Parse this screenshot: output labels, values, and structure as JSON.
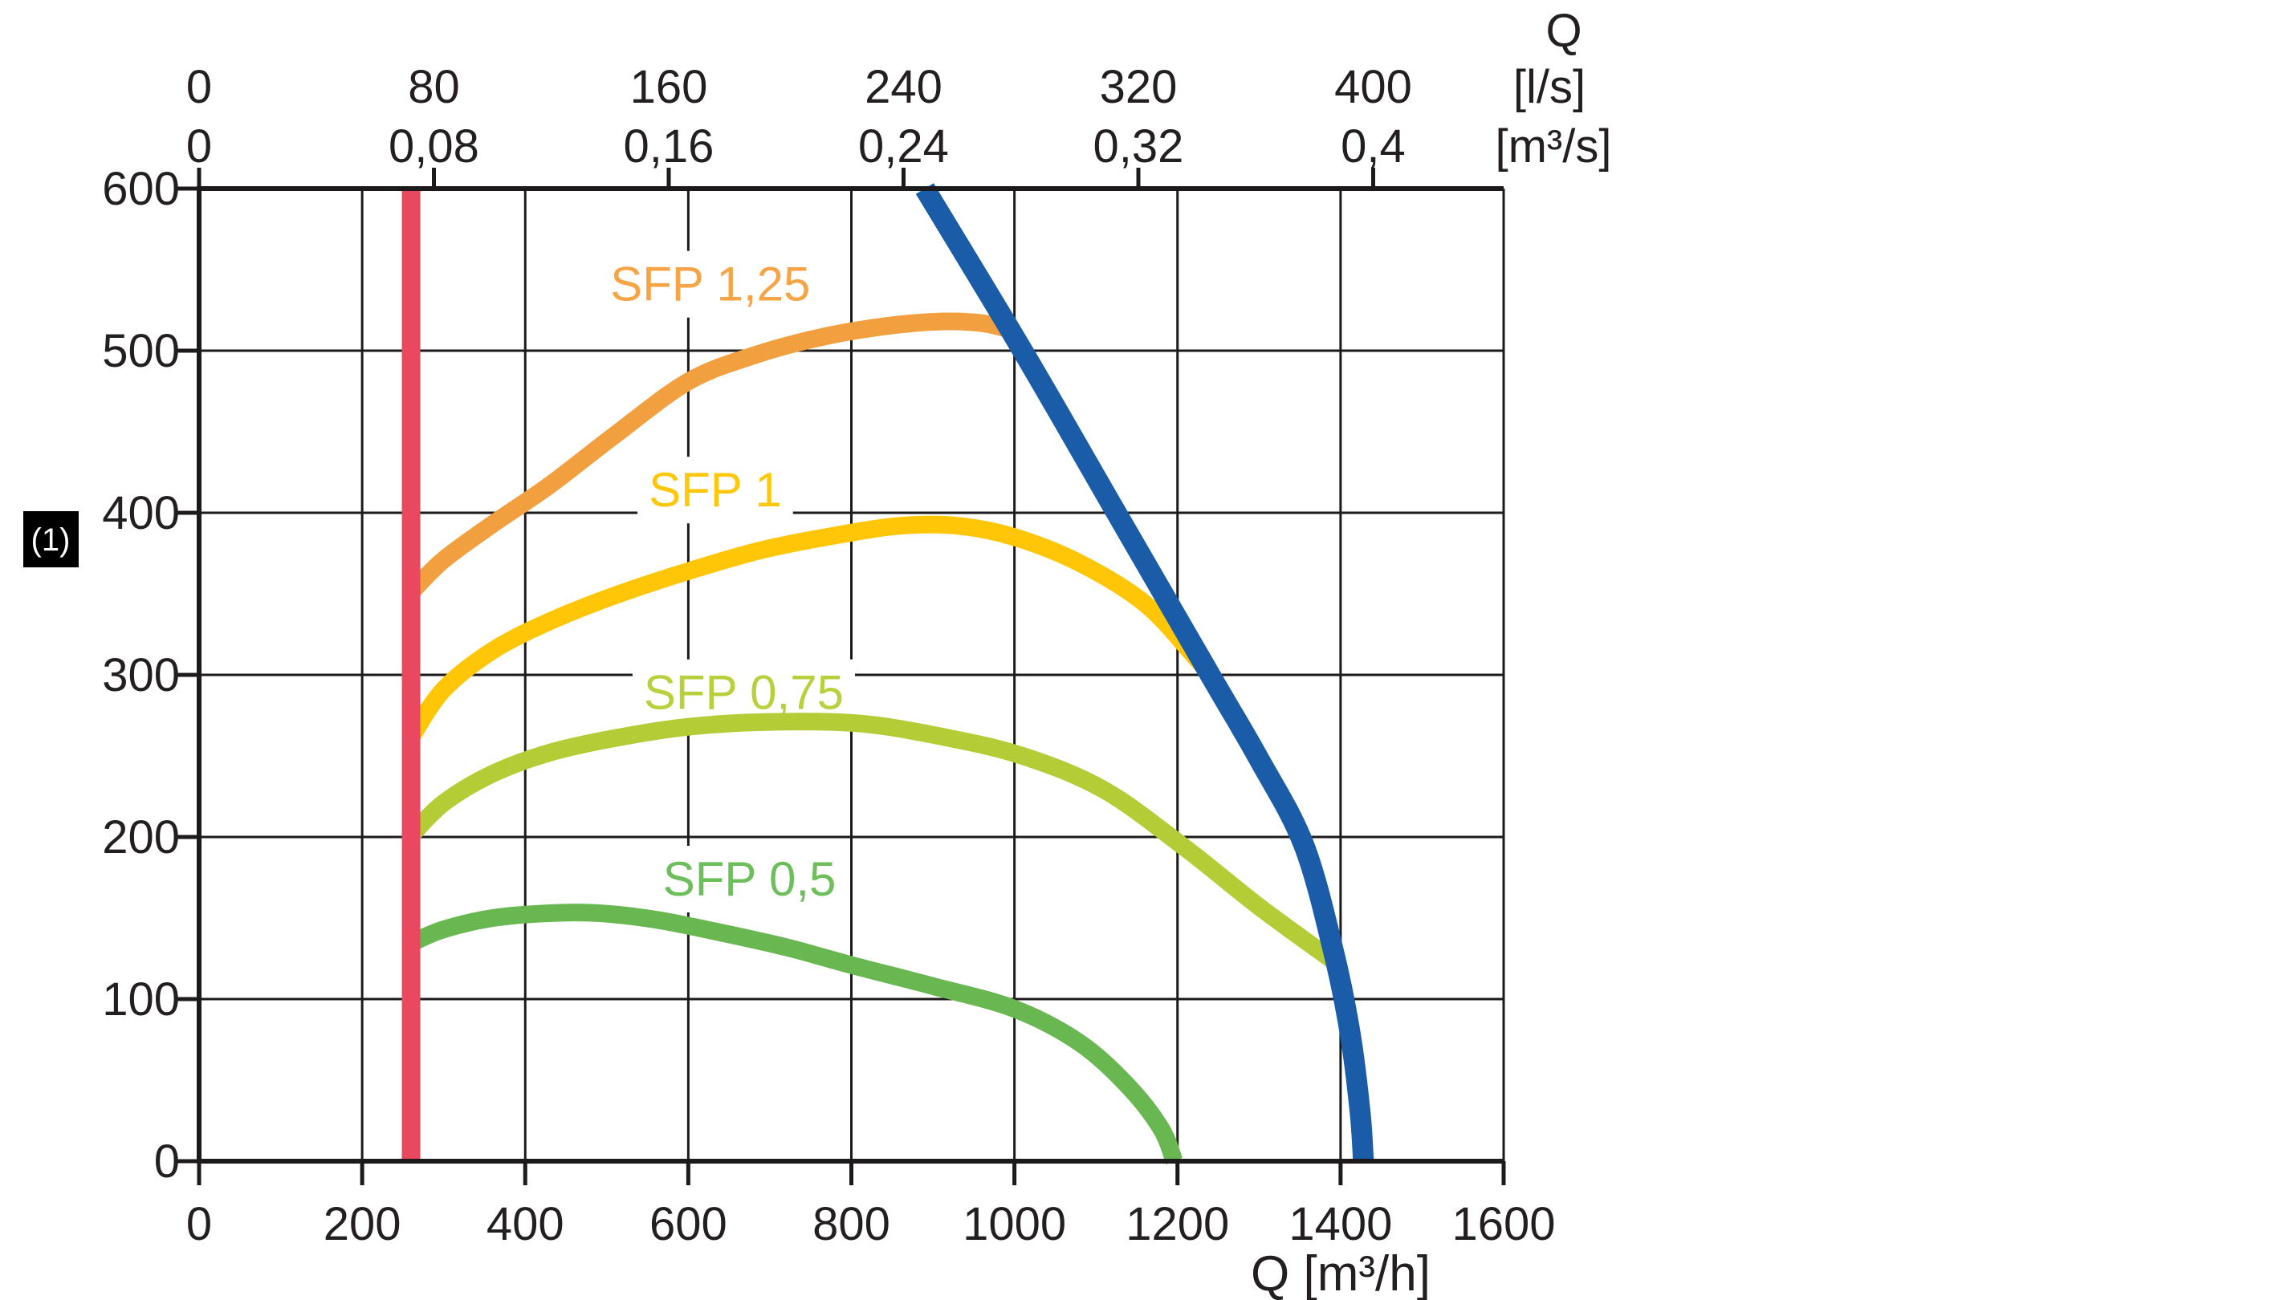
{
  "figure": {
    "background": "#ffffff",
    "text_color": "#231f20",
    "line_color": "#1d1a1b",
    "badge": {
      "text": "(1)",
      "bg": "#000000",
      "fg": "#ffffff"
    },
    "top_axis": {
      "title": "Q",
      "unit_row_1": "[l/s]",
      "unit_row_2": "[m³/s]",
      "tick_values_m3h": [
        0,
        288,
        576,
        864,
        1152,
        1440
      ],
      "labels_row_1": [
        "0",
        "80",
        "160",
        "240",
        "320",
        "400"
      ],
      "labels_row_2": [
        "0",
        "0,08",
        "0,16",
        "0,24",
        "0,32",
        "0,4"
      ]
    },
    "bottom_axis": {
      "title": "Q [m³/h]",
      "tick_values": [
        0,
        200,
        400,
        600,
        800,
        1000,
        1200,
        1400,
        1600
      ],
      "labels": [
        "0",
        "200",
        "400",
        "600",
        "800",
        "1000",
        "1200",
        "1400",
        "1600"
      ]
    },
    "left_axis": {
      "tick_values": [
        0,
        100,
        200,
        300,
        400,
        500,
        600
      ],
      "labels": [
        "0",
        "100",
        "200",
        "300",
        "400",
        "500",
        "600"
      ]
    },
    "chart_data": {
      "type": "line",
      "xlabel": "Q [m³/h]",
      "ylabel": "",
      "xlim": [
        0,
        1600
      ],
      "ylim": [
        0,
        600
      ],
      "x_grid_step": 200,
      "y_grid_step": 100,
      "grid": true,
      "series": [
        {
          "name": "SFP 0,5",
          "label": "SFP 0,5",
          "color": "#68b750",
          "label_color": "#6cbf5b",
          "label_pos": [
            675,
            174
          ],
          "points": [
            [
              262,
              135
            ],
            [
              300,
              143
            ],
            [
              360,
              150
            ],
            [
              430,
              153
            ],
            [
              490,
              153
            ],
            [
              560,
              149
            ],
            [
              640,
              141
            ],
            [
              720,
              132
            ],
            [
              800,
              121
            ],
            [
              900,
              108
            ],
            [
              1000,
              94
            ],
            [
              1080,
              73
            ],
            [
              1140,
              46
            ],
            [
              1180,
              20
            ],
            [
              1196,
              0
            ]
          ]
        },
        {
          "name": "SFP 0,75",
          "label": "SFP 0,75",
          "color": "#b4cc35",
          "label_color": "#b8d03b",
          "label_pos": [
            668,
            289
          ],
          "points": [
            [
              262,
              202
            ],
            [
              300,
              221
            ],
            [
              360,
              239
            ],
            [
              430,
              252
            ],
            [
              510,
              261
            ],
            [
              600,
              268
            ],
            [
              700,
              271
            ],
            [
              810,
              270
            ],
            [
              910,
              262
            ],
            [
              1010,
              250
            ],
            [
              1110,
              229
            ],
            [
              1210,
              193
            ],
            [
              1300,
              157
            ],
            [
              1390,
              124
            ]
          ]
        },
        {
          "name": "SFP 1",
          "label": "SFP 1",
          "color": "#fec607",
          "label_color": "#ffc70a",
          "label_pos": [
            633,
            414
          ],
          "points": [
            [
              262,
              263
            ],
            [
              300,
              291
            ],
            [
              360,
              315
            ],
            [
              430,
              333
            ],
            [
              510,
              349
            ],
            [
              600,
              364
            ],
            [
              690,
              377
            ],
            [
              780,
              386
            ],
            [
              860,
              392
            ],
            [
              930,
              392
            ],
            [
              1000,
              385
            ],
            [
              1080,
              369
            ],
            [
              1160,
              344
            ],
            [
              1220,
              312
            ],
            [
              1243,
              298
            ]
          ]
        },
        {
          "name": "SFP 1,25",
          "label": "SFP 1,25",
          "color": "#f2a03f",
          "label_color": "#f6a445",
          "label_pos": [
            627,
            541
          ],
          "points": [
            [
              262,
              352
            ],
            [
              300,
              371
            ],
            [
              360,
              393
            ],
            [
              430,
              417
            ],
            [
              510,
              448
            ],
            [
              600,
              481
            ],
            [
              680,
              497
            ],
            [
              760,
              508
            ],
            [
              840,
              515
            ],
            [
              910,
              518
            ],
            [
              960,
              517
            ],
            [
              995,
              513
            ]
          ]
        },
        {
          "name": "fan-max-curve",
          "label": "",
          "color": "#1a5ca7",
          "label_color": "#1a5ca7",
          "label_pos": null,
          "points": [
            [
              890,
              600
            ],
            [
              1010,
              500
            ],
            [
              1125,
              400
            ],
            [
              1240,
              300
            ],
            [
              1300,
              248
            ],
            [
              1355,
              195
            ],
            [
              1392,
              128
            ],
            [
              1412,
              78
            ],
            [
              1424,
              30
            ],
            [
              1428,
              0
            ]
          ]
        }
      ],
      "limit_line": {
        "name": "min-flow-limit-line",
        "x": 260,
        "color": "#e94860"
      }
    }
  }
}
